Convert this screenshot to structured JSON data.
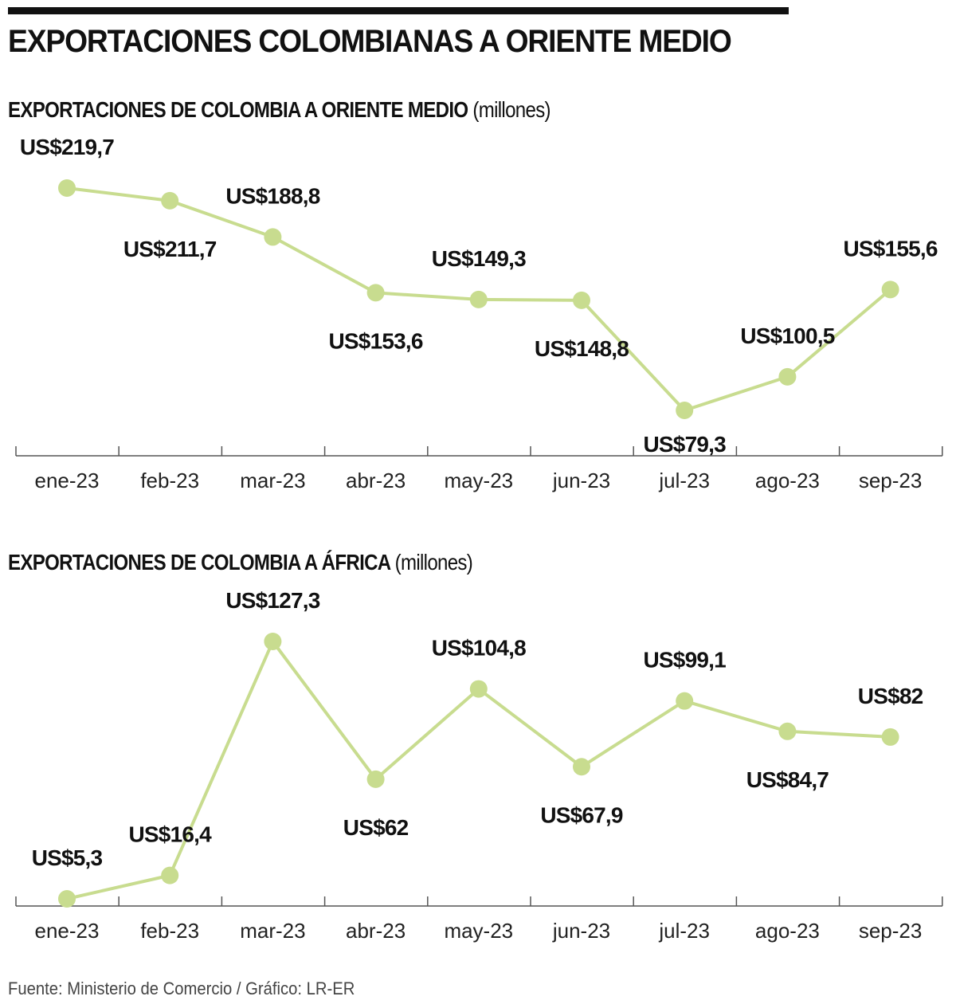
{
  "header": {
    "title": "EXPORTACIONES COLOMBIANAS A ORIENTE MEDIO"
  },
  "chart_data": [
    {
      "type": "line",
      "title": "EXPORTACIONES DE COLOMBIA A ORIENTE MEDIO",
      "unit": "(millones)",
      "categories": [
        "ene-23",
        "feb-23",
        "mar-23",
        "abr-23",
        "may-23",
        "jun-23",
        "jul-23",
        "ago-23",
        "sep-23"
      ],
      "values": [
        219.7,
        211.7,
        188.8,
        153.6,
        149.3,
        148.8,
        79.3,
        100.5,
        155.6
      ],
      "data_labels": [
        "US$219,7",
        "US$211,7",
        "US$188,8",
        "US$153,6",
        "US$149,3",
        "US$148,8",
        "US$79,3",
        "US$100,5",
        "US$155,6"
      ],
      "label_positions": [
        "above",
        "below",
        "above",
        "below",
        "above",
        "below",
        "below",
        "above",
        "above"
      ],
      "line_color": "#c8dc8f",
      "marker_color": "#c8dc8f",
      "grid": false
    },
    {
      "type": "line",
      "title": "EXPORTACIONES DE COLOMBIA A ÁFRICA",
      "unit": "(millones)",
      "categories": [
        "ene-23",
        "feb-23",
        "mar-23",
        "abr-23",
        "may-23",
        "jun-23",
        "jul-23",
        "ago-23",
        "sep-23"
      ],
      "values": [
        5.3,
        16.4,
        127.3,
        62,
        104.8,
        67.9,
        99.1,
        84.7,
        82
      ],
      "data_labels": [
        "US$5,3",
        "US$16,4",
        "US$127,3",
        "US$62",
        "US$104,8",
        "US$67,9",
        "US$99,1",
        "US$84,7",
        "US$82"
      ],
      "label_positions": [
        "above",
        "above",
        "above",
        "below",
        "above",
        "below",
        "above",
        "below",
        "above"
      ],
      "line_color": "#c8dc8f",
      "marker_color": "#c8dc8f",
      "grid": false
    }
  ],
  "footer": {
    "source": "Fuente: Ministerio de Comercio / Gráfico: LR-ER"
  }
}
